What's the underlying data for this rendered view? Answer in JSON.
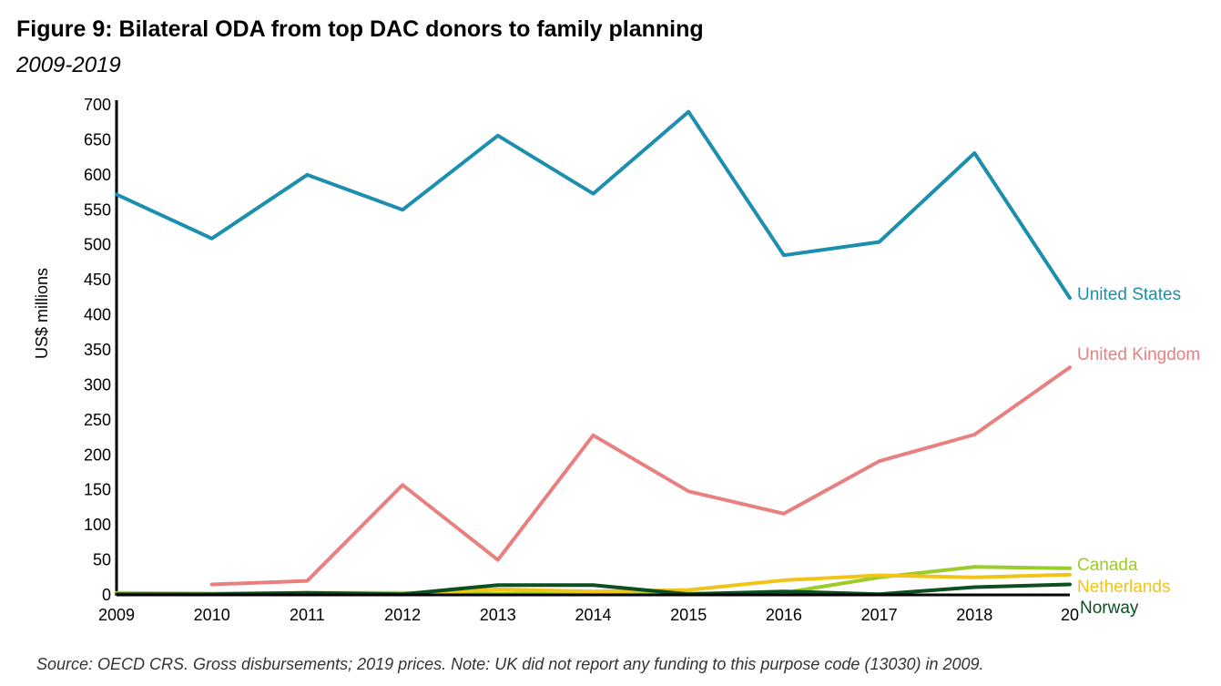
{
  "header": {
    "title": "Figure 9: Bilateral ODA from top DAC donors to family planning",
    "subtitle": "2009-2019"
  },
  "footer": {
    "source": "Source: OECD CRS. Gross disbursements; 2019 prices. Note: UK did not report any funding to this purpose code (13030) in 2009."
  },
  "chart_data": {
    "type": "line",
    "title": "Figure 9: Bilateral ODA from top DAC donors to family planning",
    "subtitle": "2009-2019",
    "xlabel": "",
    "ylabel": "US$ millions",
    "x": [
      "2009",
      "2010",
      "2011",
      "2012",
      "2013",
      "2014",
      "2015",
      "2016",
      "2017",
      "2018",
      "20"
    ],
    "x_ticks_shown": [
      "2009",
      "2010",
      "2011",
      "2012",
      "2013",
      "2014",
      "2015",
      "2016",
      "2017",
      "2018",
      "20"
    ],
    "ylim": [
      0,
      700
    ],
    "yticks": [
      0,
      50,
      100,
      150,
      200,
      250,
      300,
      350,
      400,
      450,
      500,
      550,
      600,
      650,
      700
    ],
    "grid": false,
    "legend": "inline labels at right end of lines",
    "series": [
      {
        "name": "United States",
        "color": "#1b8fad",
        "values": [
          572,
          509,
          600,
          550,
          656,
          573,
          690,
          485,
          504,
          631,
          424
        ]
      },
      {
        "name": "United Kingdom",
        "color": "#e88080",
        "values": [
          null,
          15,
          20,
          157,
          50,
          228,
          148,
          116,
          191,
          229,
          325
        ]
      },
      {
        "name": "Canada",
        "color": "#9ccc2a",
        "values": [
          3,
          2,
          3,
          3,
          2,
          2,
          2,
          3,
          25,
          40,
          38
        ]
      },
      {
        "name": "Netherlands",
        "color": "#f0c419",
        "values": [
          2,
          1,
          2,
          2,
          8,
          5,
          7,
          21,
          28,
          25,
          29
        ]
      },
      {
        "name": "Norway",
        "color": "#0d4f20",
        "values": [
          1,
          1,
          3,
          1,
          14,
          14,
          1,
          5,
          1,
          11,
          15
        ]
      }
    ]
  }
}
